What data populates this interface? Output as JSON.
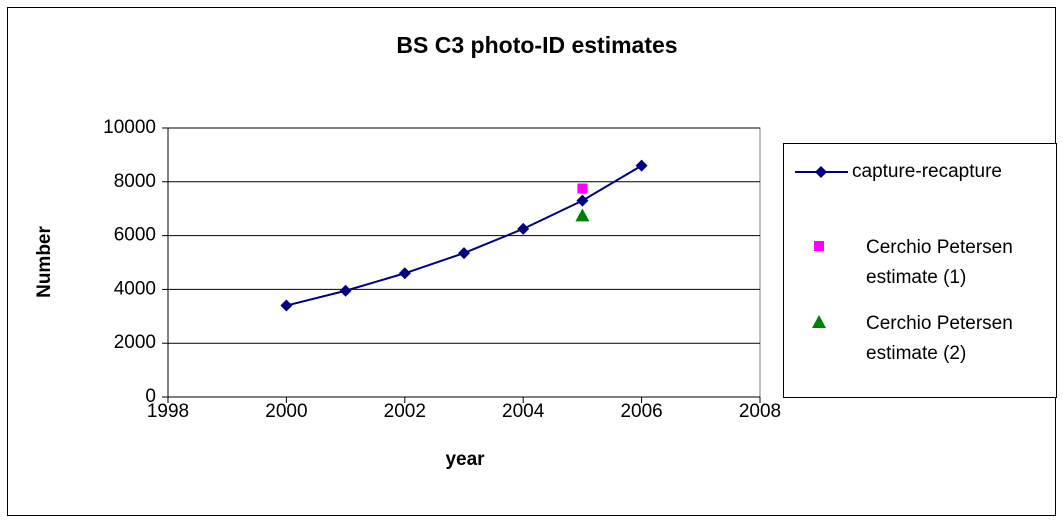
{
  "chart_data": {
    "type": "scatter",
    "title": "BS C3 photo-ID estimates",
    "x_label": "year",
    "y_label": "Number",
    "xlim": [
      1998,
      2008
    ],
    "xticks": [
      1998,
      2000,
      2002,
      2004,
      2006,
      2008
    ],
    "ylim": [
      0,
      10000
    ],
    "yticks": [
      0,
      2000,
      4000,
      6000,
      8000,
      10000
    ],
    "grid": true,
    "legend": "right",
    "series": [
      {
        "name": "capture-recapture",
        "color": "#000080",
        "marker": "diamond",
        "line": true,
        "x": [
          2000,
          2001,
          2002,
          2003,
          2004,
          2005,
          2006
        ],
        "values": [
          3400,
          3950,
          4600,
          5350,
          6250,
          7300,
          8600
        ]
      },
      {
        "name": "Cerchio Petersen estimate (1)",
        "color": "#ff00ff",
        "marker": "square",
        "line": false,
        "x": [
          2005
        ],
        "values": [
          7750
        ]
      },
      {
        "name": "Cerchio Petersen estimate (2)",
        "color": "#008000",
        "marker": "triangle",
        "line": false,
        "x": [
          2005
        ],
        "values": [
          6750
        ]
      }
    ]
  }
}
